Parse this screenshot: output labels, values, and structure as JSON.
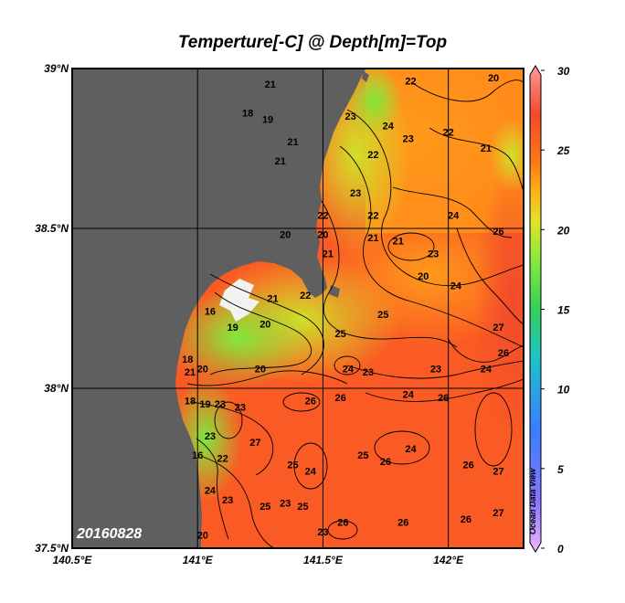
{
  "title": "Temperture[-C] @ Depth[m]=Top",
  "date_stamp": "20160828",
  "watermark": "Ocean Data View",
  "lat_ticks": [
    {
      "value": 39.0,
      "label": "39°N"
    },
    {
      "value": 38.5,
      "label": "38.5°N"
    },
    {
      "value": 38.0,
      "label": "38°N"
    },
    {
      "value": 37.5,
      "label": "37.5°N"
    }
  ],
  "lon_ticks": [
    {
      "value": 140.5,
      "label": "140.5°E"
    },
    {
      "value": 141.0,
      "label": "141°E"
    },
    {
      "value": 141.5,
      "label": "141.5°E"
    },
    {
      "value": 142.0,
      "label": "142°E"
    }
  ],
  "colorbar": {
    "min": 0,
    "max": 30,
    "tick_labels": [
      "30",
      "25",
      "20",
      "15",
      "10",
      "5",
      "0"
    ],
    "tick_values": [
      30,
      25,
      20,
      15,
      10,
      5,
      0
    ],
    "stops": [
      "#f0b8ff",
      "#8877ff",
      "#3a7dff",
      "#1ec3c8",
      "#35d05a",
      "#86ea3a",
      "#e3e22a",
      "#ffb21a",
      "#ff7a18",
      "#f04a2a",
      "#ff9a9a"
    ]
  },
  "colors": {
    "land": "#5f5f5f",
    "frame": "#000000"
  },
  "map": {
    "lon_range": [
      140.5,
      142.3
    ],
    "lat_range": [
      37.5,
      39.0
    ],
    "contour_labels": [
      {
        "lon": 141.85,
        "lat": 38.95,
        "text": "22"
      },
      {
        "lon": 142.18,
        "lat": 38.96,
        "text": "20"
      },
      {
        "lon": 141.29,
        "lat": 38.94,
        "text": "21"
      },
      {
        "lon": 141.2,
        "lat": 38.85,
        "text": "18"
      },
      {
        "lon": 141.28,
        "lat": 38.83,
        "text": "19"
      },
      {
        "lon": 141.38,
        "lat": 38.76,
        "text": "21"
      },
      {
        "lon": 141.33,
        "lat": 38.7,
        "text": "21"
      },
      {
        "lon": 141.61,
        "lat": 38.84,
        "text": "23"
      },
      {
        "lon": 141.76,
        "lat": 38.81,
        "text": "24"
      },
      {
        "lon": 141.84,
        "lat": 38.77,
        "text": "23"
      },
      {
        "lon": 142.0,
        "lat": 38.79,
        "text": "22"
      },
      {
        "lon": 142.15,
        "lat": 38.74,
        "text": "21"
      },
      {
        "lon": 141.7,
        "lat": 38.72,
        "text": "22"
      },
      {
        "lon": 141.63,
        "lat": 38.6,
        "text": "23"
      },
      {
        "lon": 141.7,
        "lat": 38.53,
        "text": "22"
      },
      {
        "lon": 141.5,
        "lat": 38.53,
        "text": "22"
      },
      {
        "lon": 141.7,
        "lat": 38.46,
        "text": "21"
      },
      {
        "lon": 141.5,
        "lat": 38.47,
        "text": "20"
      },
      {
        "lon": 141.52,
        "lat": 38.41,
        "text": "21"
      },
      {
        "lon": 141.35,
        "lat": 38.47,
        "text": "20"
      },
      {
        "lon": 142.02,
        "lat": 38.53,
        "text": "24"
      },
      {
        "lon": 142.2,
        "lat": 38.48,
        "text": "26"
      },
      {
        "lon": 141.8,
        "lat": 38.45,
        "text": "21"
      },
      {
        "lon": 141.9,
        "lat": 38.34,
        "text": "20"
      },
      {
        "lon": 141.94,
        "lat": 38.41,
        "text": "23"
      },
      {
        "lon": 142.03,
        "lat": 38.31,
        "text": "24"
      },
      {
        "lon": 141.43,
        "lat": 38.28,
        "text": "22"
      },
      {
        "lon": 141.3,
        "lat": 38.27,
        "text": "21"
      },
      {
        "lon": 141.27,
        "lat": 38.19,
        "text": "20"
      },
      {
        "lon": 141.14,
        "lat": 38.18,
        "text": "19"
      },
      {
        "lon": 141.05,
        "lat": 38.23,
        "text": "16"
      },
      {
        "lon": 140.96,
        "lat": 38.08,
        "text": "18"
      },
      {
        "lon": 141.02,
        "lat": 38.05,
        "text": "20"
      },
      {
        "lon": 140.97,
        "lat": 38.04,
        "text": "21"
      },
      {
        "lon": 141.25,
        "lat": 38.05,
        "text": "20"
      },
      {
        "lon": 141.57,
        "lat": 38.16,
        "text": "25"
      },
      {
        "lon": 141.74,
        "lat": 38.22,
        "text": "25"
      },
      {
        "lon": 141.6,
        "lat": 38.05,
        "text": "24"
      },
      {
        "lon": 141.68,
        "lat": 38.04,
        "text": "23"
      },
      {
        "lon": 141.95,
        "lat": 38.05,
        "text": "23"
      },
      {
        "lon": 142.15,
        "lat": 38.05,
        "text": "24"
      },
      {
        "lon": 142.22,
        "lat": 38.1,
        "text": "26"
      },
      {
        "lon": 142.2,
        "lat": 38.18,
        "text": "27"
      },
      {
        "lon": 141.98,
        "lat": 37.96,
        "text": "26"
      },
      {
        "lon": 141.84,
        "lat": 37.97,
        "text": "24"
      },
      {
        "lon": 141.57,
        "lat": 37.96,
        "text": "26"
      },
      {
        "lon": 141.45,
        "lat": 37.95,
        "text": "26"
      },
      {
        "lon": 140.97,
        "lat": 37.95,
        "text": "18"
      },
      {
        "lon": 141.03,
        "lat": 37.94,
        "text": "19"
      },
      {
        "lon": 141.09,
        "lat": 37.94,
        "text": "23"
      },
      {
        "lon": 141.17,
        "lat": 37.93,
        "text": "23"
      },
      {
        "lon": 141.05,
        "lat": 37.84,
        "text": "23"
      },
      {
        "lon": 141.23,
        "lat": 37.82,
        "text": "27"
      },
      {
        "lon": 141.38,
        "lat": 37.75,
        "text": "25"
      },
      {
        "lon": 141.45,
        "lat": 37.73,
        "text": "24"
      },
      {
        "lon": 141.66,
        "lat": 37.78,
        "text": "25"
      },
      {
        "lon": 141.75,
        "lat": 37.76,
        "text": "26"
      },
      {
        "lon": 141.85,
        "lat": 37.8,
        "text": "24"
      },
      {
        "lon": 142.08,
        "lat": 37.75,
        "text": "26"
      },
      {
        "lon": 142.2,
        "lat": 37.73,
        "text": "27"
      },
      {
        "lon": 141.0,
        "lat": 37.78,
        "text": "16"
      },
      {
        "lon": 141.1,
        "lat": 37.77,
        "text": "22"
      },
      {
        "lon": 141.05,
        "lat": 37.67,
        "text": "24"
      },
      {
        "lon": 141.12,
        "lat": 37.64,
        "text": "23"
      },
      {
        "lon": 141.27,
        "lat": 37.62,
        "text": "25"
      },
      {
        "lon": 141.35,
        "lat": 37.63,
        "text": "23"
      },
      {
        "lon": 141.42,
        "lat": 37.62,
        "text": "25"
      },
      {
        "lon": 141.58,
        "lat": 37.57,
        "text": "26"
      },
      {
        "lon": 141.5,
        "lat": 37.54,
        "text": "23"
      },
      {
        "lon": 141.82,
        "lat": 37.57,
        "text": "26"
      },
      {
        "lon": 142.07,
        "lat": 37.58,
        "text": "26"
      },
      {
        "lon": 142.2,
        "lat": 37.6,
        "text": "27"
      },
      {
        "lon": 141.02,
        "lat": 37.53,
        "text": "20"
      }
    ]
  }
}
